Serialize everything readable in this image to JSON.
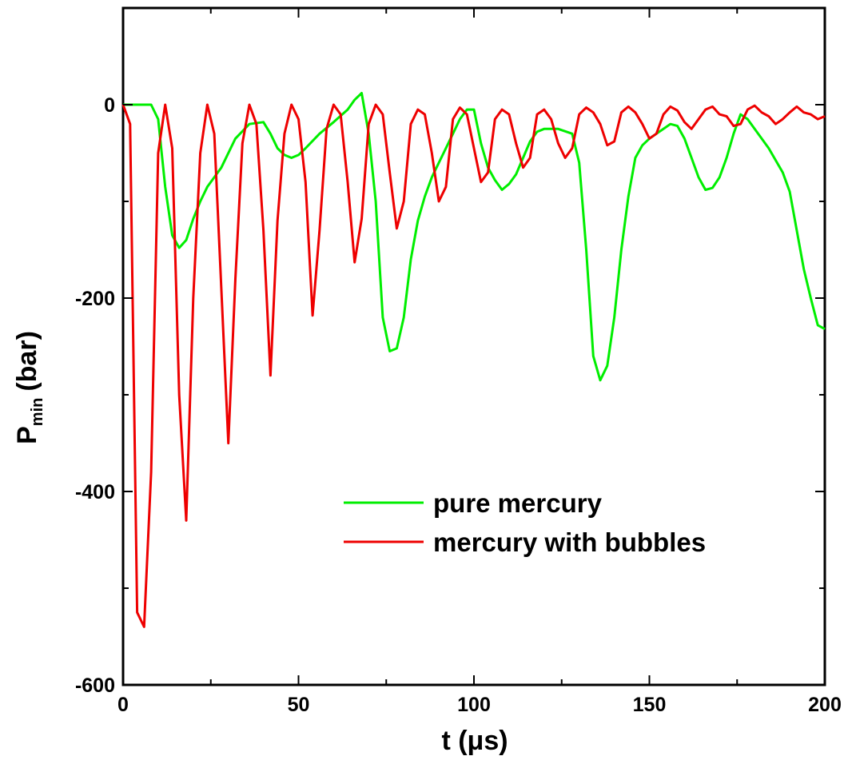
{
  "chart_data": {
    "type": "line",
    "xlabel": "t (μs)",
    "ylabel": "P_min (bar)",
    "ylabel_main": "P",
    "ylabel_sub": "min",
    "ylabel_unit": "(bar)",
    "xlim": [
      0,
      200
    ],
    "ylim": [
      -600,
      100
    ],
    "xticks": [
      0,
      50,
      100,
      150,
      200
    ],
    "yticks": [
      -600,
      -400,
      -200,
      0
    ],
    "xtick_labels": [
      "0",
      "50",
      "100",
      "150",
      "200"
    ],
    "ytick_labels": [
      "-600",
      "-400",
      "-200",
      "0"
    ],
    "grid": false,
    "legend_position": "lower-right",
    "series": [
      {
        "name": "pure mercury",
        "color": "#00ee00",
        "x": [
          0,
          4,
          8,
          10,
          12,
          14,
          16,
          18,
          20,
          22,
          24,
          28,
          32,
          36,
          40,
          42,
          44,
          46,
          48,
          50,
          52,
          56,
          60,
          64,
          66,
          68,
          70,
          72,
          74,
          76,
          78,
          80,
          82,
          84,
          86,
          88,
          90,
          92,
          94,
          96,
          98,
          100,
          102,
          104,
          106,
          108,
          110,
          112,
          114,
          116,
          118,
          120,
          124,
          128,
          130,
          132,
          134,
          136,
          138,
          140,
          142,
          144,
          146,
          148,
          150,
          152,
          154,
          156,
          158,
          160,
          162,
          164,
          166,
          168,
          170,
          172,
          174,
          176,
          178,
          180,
          184,
          188,
          190,
          192,
          194,
          196,
          198,
          200
        ],
        "values": [
          0,
          0,
          0,
          -15,
          -85,
          -135,
          -148,
          -140,
          -118,
          -100,
          -85,
          -65,
          -35,
          -20,
          -18,
          -30,
          -45,
          -52,
          -55,
          -52,
          -45,
          -30,
          -18,
          -5,
          5,
          12,
          -30,
          -100,
          -220,
          -255,
          -252,
          -220,
          -160,
          -120,
          -95,
          -75,
          -60,
          -45,
          -30,
          -15,
          -5,
          -5,
          -40,
          -65,
          -78,
          -88,
          -82,
          -72,
          -55,
          -38,
          -28,
          -25,
          -25,
          -30,
          -60,
          -150,
          -260,
          -285,
          -270,
          -220,
          -150,
          -95,
          -55,
          -42,
          -35,
          -30,
          -25,
          -20,
          -22,
          -35,
          -55,
          -75,
          -88,
          -86,
          -75,
          -55,
          -30,
          -10,
          -15,
          -25,
          -45,
          -70,
          -90,
          -130,
          -170,
          -200,
          -228,
          -232
        ]
      },
      {
        "name": "mercury with bubbles",
        "color": "#ee0000",
        "x": [
          0,
          2,
          4,
          6,
          8,
          10,
          12,
          14,
          16,
          18,
          20,
          22,
          24,
          26,
          28,
          30,
          32,
          34,
          36,
          38,
          40,
          42,
          44,
          46,
          48,
          50,
          52,
          54,
          56,
          58,
          60,
          62,
          64,
          66,
          68,
          70,
          72,
          74,
          76,
          78,
          80,
          82,
          84,
          86,
          88,
          90,
          92,
          94,
          96,
          98,
          100,
          102,
          104,
          106,
          108,
          110,
          112,
          114,
          116,
          118,
          120,
          122,
          124,
          126,
          128,
          130,
          132,
          134,
          136,
          138,
          140,
          142,
          144,
          146,
          148,
          150,
          152,
          154,
          156,
          158,
          160,
          162,
          164,
          166,
          168,
          170,
          172,
          174,
          176,
          178,
          180,
          182,
          184,
          186,
          188,
          190,
          192,
          194,
          196,
          198,
          200
        ],
        "values": [
          0,
          -20,
          -525,
          -540,
          -380,
          -50,
          0,
          -45,
          -300,
          -430,
          -200,
          -50,
          0,
          -30,
          -190,
          -350,
          -180,
          -40,
          0,
          -20,
          -130,
          -280,
          -120,
          -30,
          0,
          -15,
          -80,
          -218,
          -130,
          -25,
          0,
          -10,
          -80,
          -163,
          -118,
          -20,
          0,
          -10,
          -70,
          -128,
          -100,
          -20,
          -5,
          -10,
          -50,
          -100,
          -85,
          -15,
          -3,
          -10,
          -45,
          -80,
          -70,
          -15,
          -5,
          -10,
          -40,
          -65,
          -55,
          -10,
          -5,
          -15,
          -40,
          -55,
          -45,
          -10,
          -3,
          -8,
          -20,
          -42,
          -38,
          -8,
          -2,
          -8,
          -20,
          -35,
          -30,
          -10,
          -2,
          -6,
          -18,
          -25,
          -15,
          -5,
          -2,
          -10,
          -12,
          -22,
          -20,
          -5,
          -1,
          -8,
          -12,
          -20,
          -15,
          -8,
          -2,
          -8,
          -10,
          -15,
          -12
        ]
      }
    ],
    "legend": [
      {
        "label": "pure mercury",
        "color": "#00ee00"
      },
      {
        "label": "mercury with bubbles",
        "color": "#ee0000"
      }
    ]
  }
}
